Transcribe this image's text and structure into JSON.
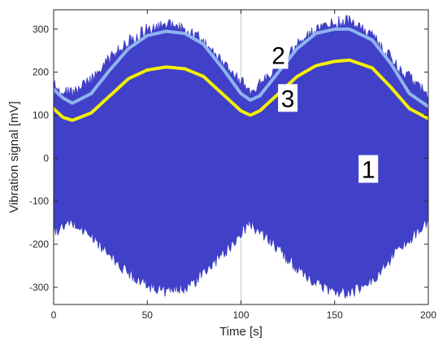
{
  "chart_data": {
    "type": "line",
    "xlabel": "Time [s]",
    "ylabel": "Vibration signal  [mV]",
    "xlim": [
      0,
      200
    ],
    "ylim": [
      -340,
      345
    ],
    "xticks": [
      0,
      50,
      100,
      150,
      200
    ],
    "yticks": [
      -300,
      -200,
      -100,
      0,
      100,
      200,
      300
    ],
    "grid": "vertical at x=100",
    "colors": {
      "raw_signal": "#4040c8",
      "envelope_2": "#8fb4ee",
      "envelope_3": "#f2f000",
      "axes": "#262626",
      "grid": "#b8d8b8"
    },
    "series": [
      {
        "label": "1",
        "upper_envelope": {
          "x": [
            0,
            10,
            20,
            35,
            50,
            62,
            75,
            90,
            105,
            120,
            135,
            150,
            158,
            170,
            185,
            200
          ],
          "y": [
            185,
            165,
            195,
            270,
            315,
            325,
            305,
            235,
            170,
            230,
            300,
            330,
            335,
            300,
            220,
            165
          ]
        },
        "lower_envelope": {
          "x": [
            0,
            10,
            20,
            35,
            50,
            62,
            75,
            90,
            105,
            120,
            135,
            150,
            158,
            170,
            185,
            200
          ],
          "y": [
            -185,
            -165,
            -195,
            -265,
            -310,
            -325,
            -305,
            -240,
            -165,
            -225,
            -295,
            -325,
            -330,
            -300,
            -220,
            -165
          ]
        }
      },
      {
        "label": "2",
        "x": [
          0,
          5,
          10,
          20,
          30,
          40,
          50,
          60,
          70,
          80,
          90,
          100,
          105,
          110,
          120,
          130,
          140,
          150,
          158,
          170,
          180,
          190,
          200
        ],
        "y": [
          160,
          140,
          128,
          150,
          205,
          255,
          285,
          295,
          290,
          265,
          210,
          150,
          135,
          145,
          200,
          255,
          290,
          300,
          300,
          275,
          220,
          150,
          120
        ]
      },
      {
        "label": "3",
        "x": [
          0,
          5,
          10,
          20,
          30,
          40,
          50,
          60,
          70,
          80,
          90,
          100,
          105,
          110,
          120,
          130,
          140,
          150,
          158,
          170,
          180,
          190,
          200
        ],
        "y": [
          115,
          95,
          88,
          105,
          145,
          185,
          205,
          212,
          208,
          190,
          150,
          110,
          100,
          110,
          150,
          190,
          215,
          225,
          228,
          210,
          165,
          115,
          92
        ]
      }
    ],
    "annotations": [
      {
        "text": "1",
        "x": 168,
        "y": -25
      },
      {
        "text": "2",
        "x": 120,
        "y": 240
      },
      {
        "text": "3",
        "x": 125,
        "y": 140
      }
    ]
  }
}
